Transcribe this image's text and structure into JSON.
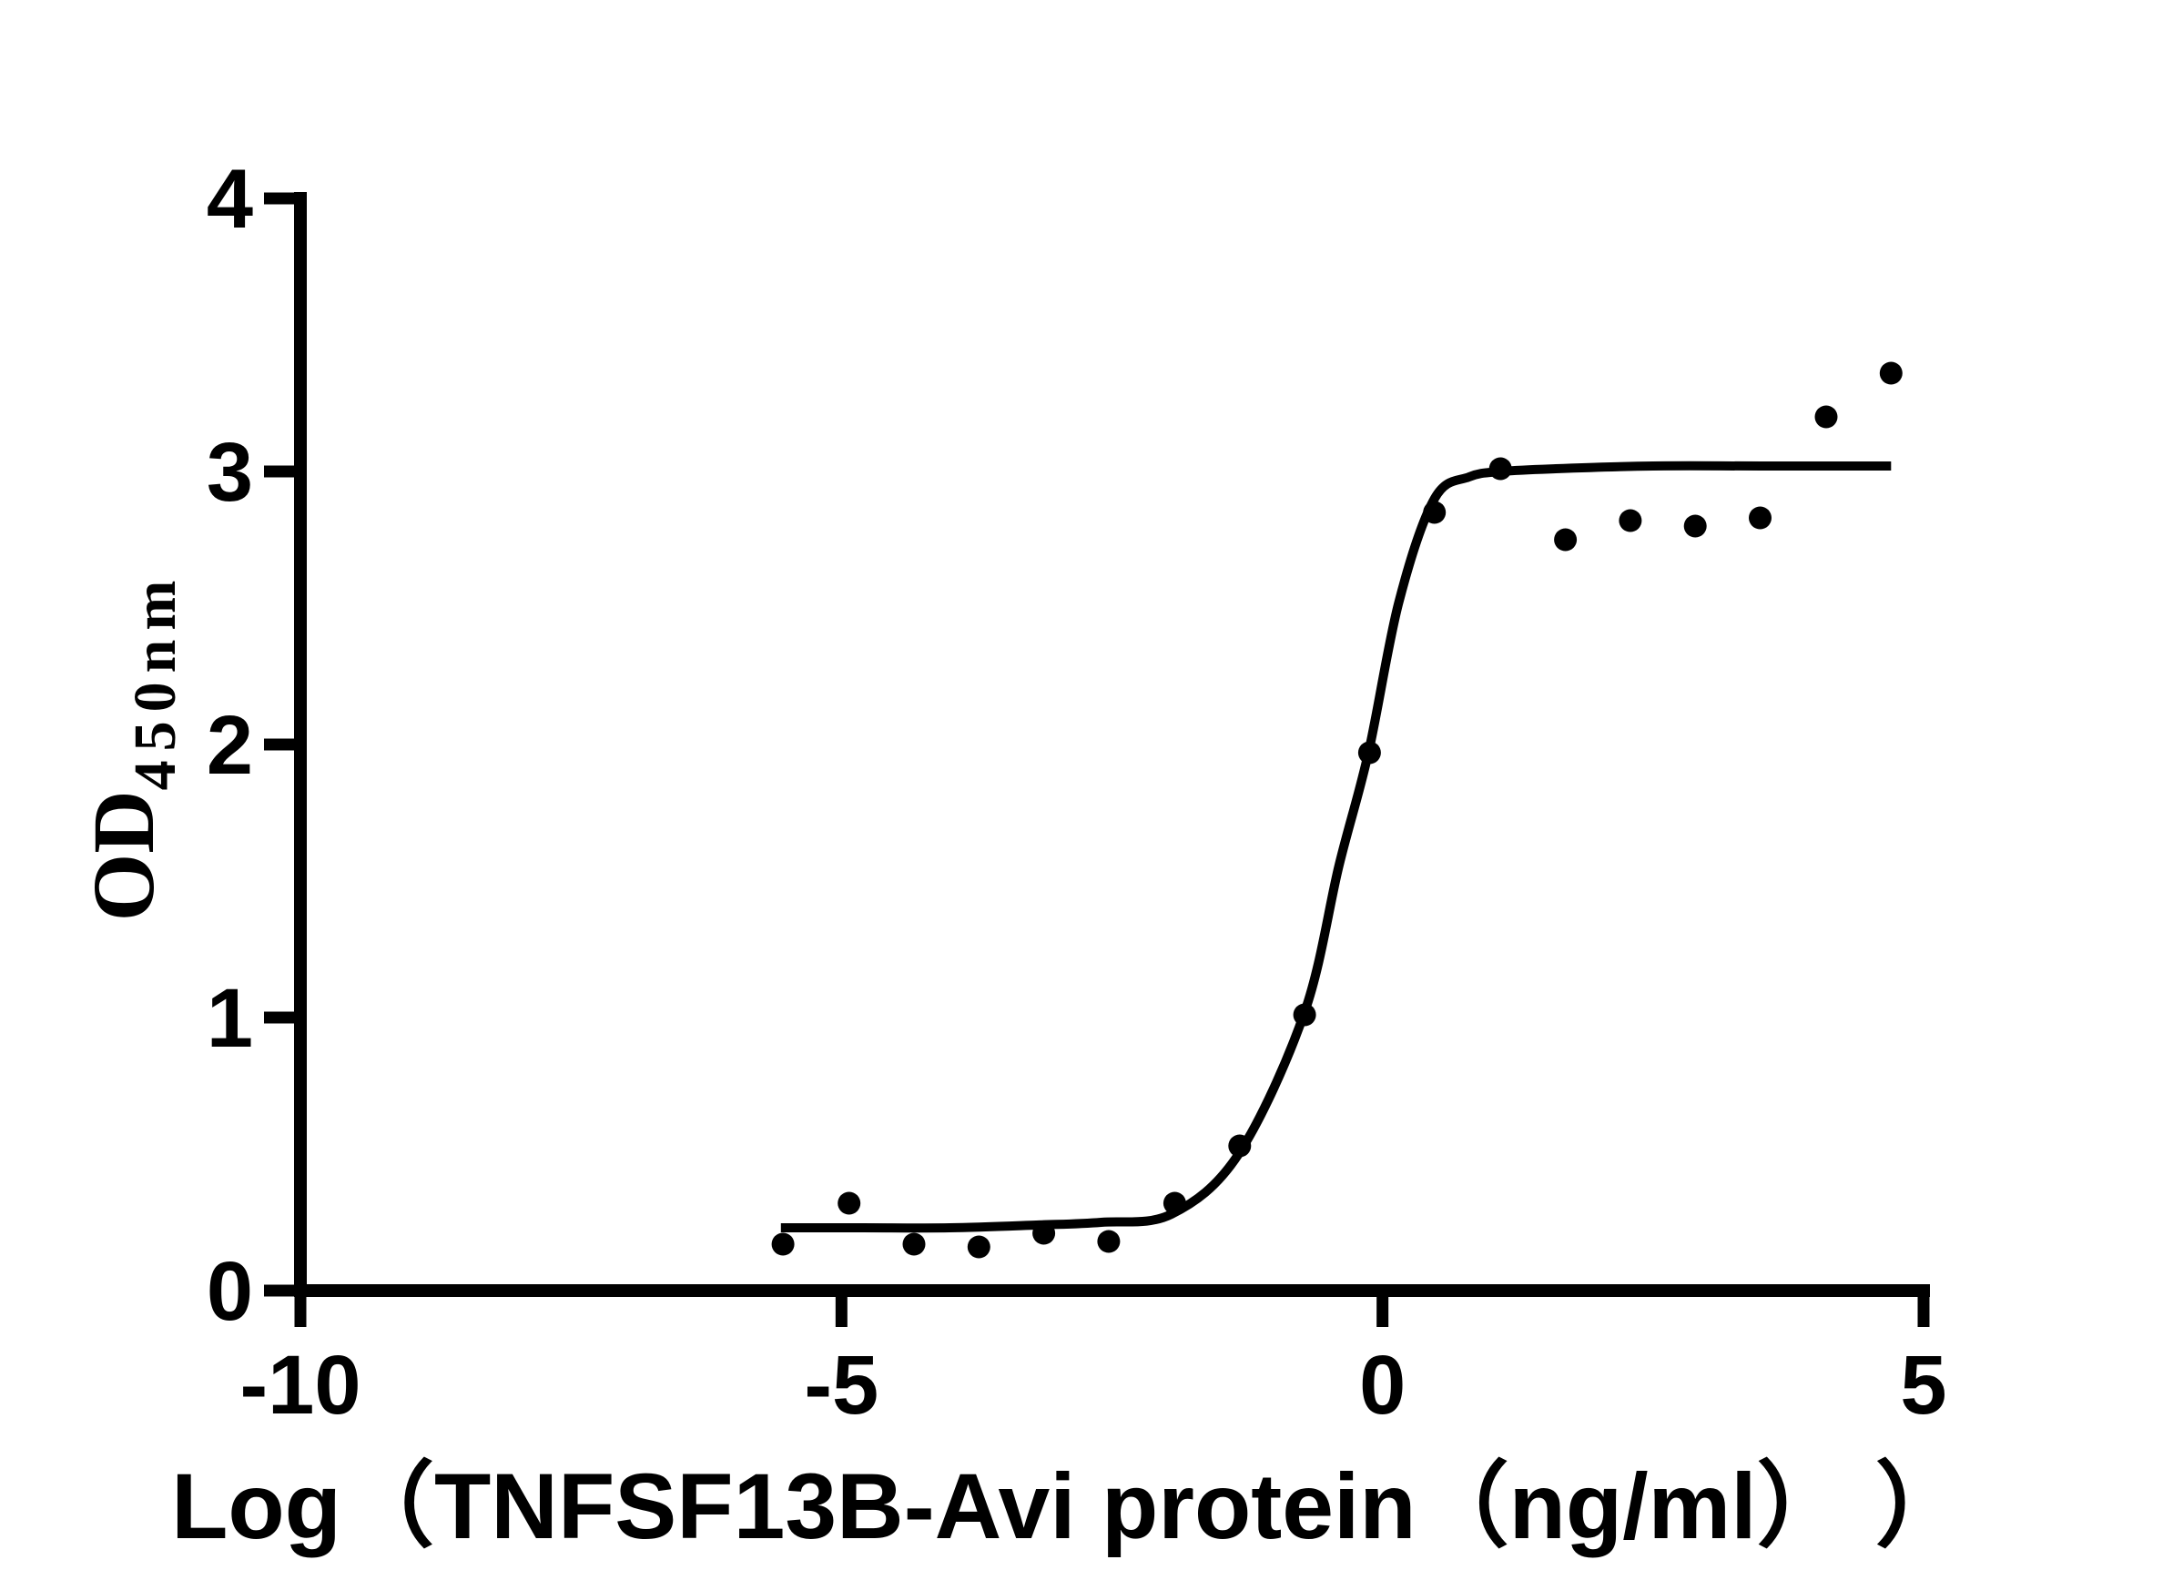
{
  "page": {
    "background": "#ffffff"
  },
  "chart_data": {
    "type": "scatter",
    "title": "",
    "xlabel": "Log（TNFSF13B-Avi protein（ng/ml） ）",
    "ylabel": "OD450nm",
    "ylabel_main": "OD",
    "ylabel_sub": "450nm",
    "xlim": [
      -10,
      5
    ],
    "ylim": [
      0,
      4
    ],
    "x_ticks": [
      -10,
      -5,
      0,
      5
    ],
    "x_tick_labels": [
      "-10",
      "-5",
      "0",
      "5"
    ],
    "y_ticks": [
      0,
      1,
      2,
      3,
      4
    ],
    "y_tick_labels": [
      "0",
      "1",
      "2",
      "3",
      "4"
    ],
    "grid": false,
    "legend": null,
    "marker": "filled-circle",
    "colors": {
      "points": "#000000",
      "curve": "#000000",
      "axes": "#000000",
      "text": "#000000",
      "background": "#ffffff"
    },
    "points": [
      [
        -5.54,
        0.17
      ],
      [
        -4.93,
        0.32
      ],
      [
        -4.33,
        0.17
      ],
      [
        -3.73,
        0.16
      ],
      [
        -3.13,
        0.21
      ],
      [
        -2.53,
        0.18
      ],
      [
        -1.92,
        0.32
      ],
      [
        -1.32,
        0.53
      ],
      [
        -0.72,
        1.01
      ],
      [
        -0.12,
        1.97
      ],
      [
        0.48,
        2.85
      ],
      [
        1.09,
        3.01
      ],
      [
        1.69,
        2.75
      ],
      [
        2.29,
        2.82
      ],
      [
        2.89,
        2.8
      ],
      [
        3.49,
        2.83
      ],
      [
        4.1,
        3.2
      ],
      [
        4.7,
        3.36
      ]
    ],
    "fit_curve": {
      "model": "sigmoidal dose-response fit (bottom ~0.23, top ~3.02)",
      "anchors": [
        [
          -5.56,
          0.23
        ],
        [
          -4.8,
          0.23
        ],
        [
          -4.0,
          0.23
        ],
        [
          -3.2,
          0.24
        ],
        [
          -2.6,
          0.25
        ],
        [
          -1.95,
          0.28
        ],
        [
          -1.33,
          0.5
        ],
        [
          -0.72,
          1.02
        ],
        [
          -0.4,
          1.56
        ],
        [
          -0.13,
          1.97
        ],
        [
          0.15,
          2.52
        ],
        [
          0.48,
          2.9
        ],
        [
          0.8,
          2.98
        ],
        [
          1.1,
          3.0
        ],
        [
          1.6,
          3.01
        ],
        [
          2.5,
          3.02
        ],
        [
          3.5,
          3.02
        ],
        [
          4.7,
          3.02
        ]
      ]
    }
  }
}
